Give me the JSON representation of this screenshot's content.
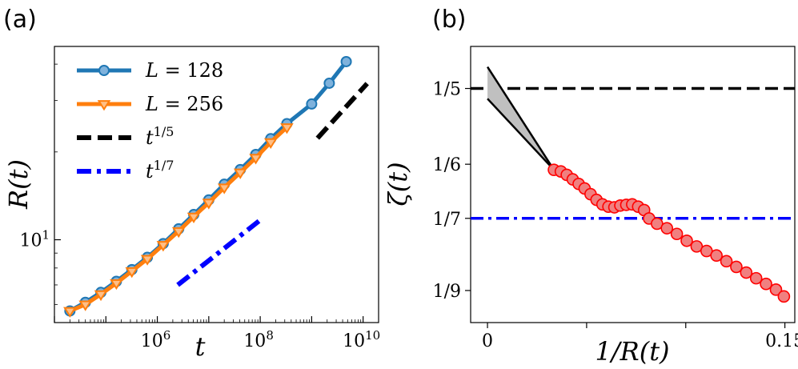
{
  "chart_data": [
    {
      "panel": "(a)",
      "type": "line",
      "xlabel": "t",
      "ylabel": "R(t)",
      "xscale": "log",
      "yscale": "log",
      "xlim": [
        10000,
        20000000000
      ],
      "ylim": [
        5.2,
        46
      ],
      "x_tick_labels": [
        {
          "value": 1000000,
          "base": "10",
          "exp": "6"
        },
        {
          "value": 100000000,
          "base": "10",
          "exp": "8"
        },
        {
          "value": 10000000000,
          "base": "10",
          "exp": "10"
        }
      ],
      "y_tick_labels": [
        {
          "value": 10,
          "base": "10",
          "exp": "1"
        }
      ],
      "legend_position": "top-left",
      "series": [
        {
          "name": "L = 128",
          "name_parts": {
            "var": "L",
            "rest": " = 128"
          },
          "color": "#1f77b4",
          "marker": "circle",
          "x": [
            20000,
            40000,
            80000,
            160000,
            320000,
            640000,
            1300000,
            2600000,
            5100000,
            10000000,
            20000000,
            41000000,
            82000000,
            160000000,
            330000000,
            1000000000,
            2200000000,
            4700000000
          ],
          "y": [
            5.7,
            6.1,
            6.6,
            7.2,
            7.9,
            8.7,
            9.7,
            10.9,
            12.2,
            13.7,
            15.5,
            17.4,
            19.6,
            22.2,
            25.0,
            29.2,
            34.4,
            40.8
          ]
        },
        {
          "name": "L = 256",
          "name_parts": {
            "var": "L",
            "rest": " = 256"
          },
          "color": "#ff7f0e",
          "marker": "triangle-down",
          "x": [
            20000,
            40000,
            80000,
            160000,
            320000,
            640000,
            1300000,
            2600000,
            5100000,
            10000000,
            20000000,
            41000000,
            82000000,
            160000000,
            330000000
          ],
          "y": [
            5.7,
            6.0,
            6.5,
            7.1,
            7.8,
            8.6,
            9.6,
            10.7,
            12.0,
            13.4,
            15.1,
            17.0,
            19.1,
            21.6,
            24.3
          ]
        },
        {
          "name": "t^{1/5}",
          "name_parts": {
            "var": "t",
            "sup": "1/5"
          },
          "color": "#000000",
          "style": "dashed",
          "x": [
            1300000000,
            12000000000
          ],
          "y": [
            22.3,
            34.3
          ]
        },
        {
          "name": "t^{1/7}",
          "name_parts": {
            "var": "t",
            "sup": "1/7"
          },
          "color": "#0000ff",
          "style": "dashdot",
          "x": [
            2500000,
            95000000
          ],
          "y": [
            7.0,
            11.6
          ]
        }
      ]
    },
    {
      "panel": "(b)",
      "type": "scatter",
      "xlabel": "1/R(t)",
      "ylabel": "ζ(t)",
      "xlim": [
        -0.0085,
        0.155
      ],
      "ylim": [
        0.097,
        0.2185
      ],
      "x_tick_labels": [
        {
          "value": 0,
          "label": "0"
        },
        {
          "value": 0.15,
          "label": "0.15"
        }
      ],
      "x_minor_ticks": [
        0.05,
        0.1
      ],
      "y_tick_labels": [
        {
          "value": 0.2,
          "label": "1/5"
        },
        {
          "value": 0.16667,
          "label": "1/6"
        },
        {
          "value": 0.14286,
          "label": "1/7"
        },
        {
          "value": 0.11111,
          "label": "1/9"
        }
      ],
      "reference_lines": [
        {
          "name": "1/5",
          "y": 0.2,
          "color": "#000000",
          "style": "dashed"
        },
        {
          "name": "1/7",
          "y": 0.14286,
          "color": "#0000ff",
          "style": "dashdot"
        }
      ],
      "extrapolation": {
        "color": "#000000",
        "fill": "#c0c0c0",
        "x_start": 0.0,
        "x_end": 0.0335,
        "y_start_upper": 0.2095,
        "y_start_lower": 0.1955,
        "y_end": 0.1642
      },
      "points": {
        "color": "#ff0000",
        "fill": "#f08080",
        "x": [
          0.0335,
          0.037,
          0.04,
          0.043,
          0.046,
          0.049,
          0.052,
          0.055,
          0.058,
          0.061,
          0.064,
          0.067,
          0.07,
          0.073,
          0.076,
          0.079,
          0.0815,
          0.0855,
          0.0905,
          0.0955,
          0.1005,
          0.1055,
          0.1105,
          0.1155,
          0.1205,
          0.1255,
          0.1305,
          0.1355,
          0.1405,
          0.1455,
          0.1495
        ],
        "y": [
          0.1642,
          0.1635,
          0.162,
          0.16,
          0.158,
          0.156,
          0.1535,
          0.151,
          0.149,
          0.148,
          0.1477,
          0.1485,
          0.1488,
          0.149,
          0.148,
          0.1465,
          0.1428,
          0.1405,
          0.1385,
          0.136,
          0.133,
          0.1305,
          0.1285,
          0.1265,
          0.124,
          0.1215,
          0.119,
          0.1165,
          0.114,
          0.1115,
          0.1085
        ]
      }
    }
  ]
}
